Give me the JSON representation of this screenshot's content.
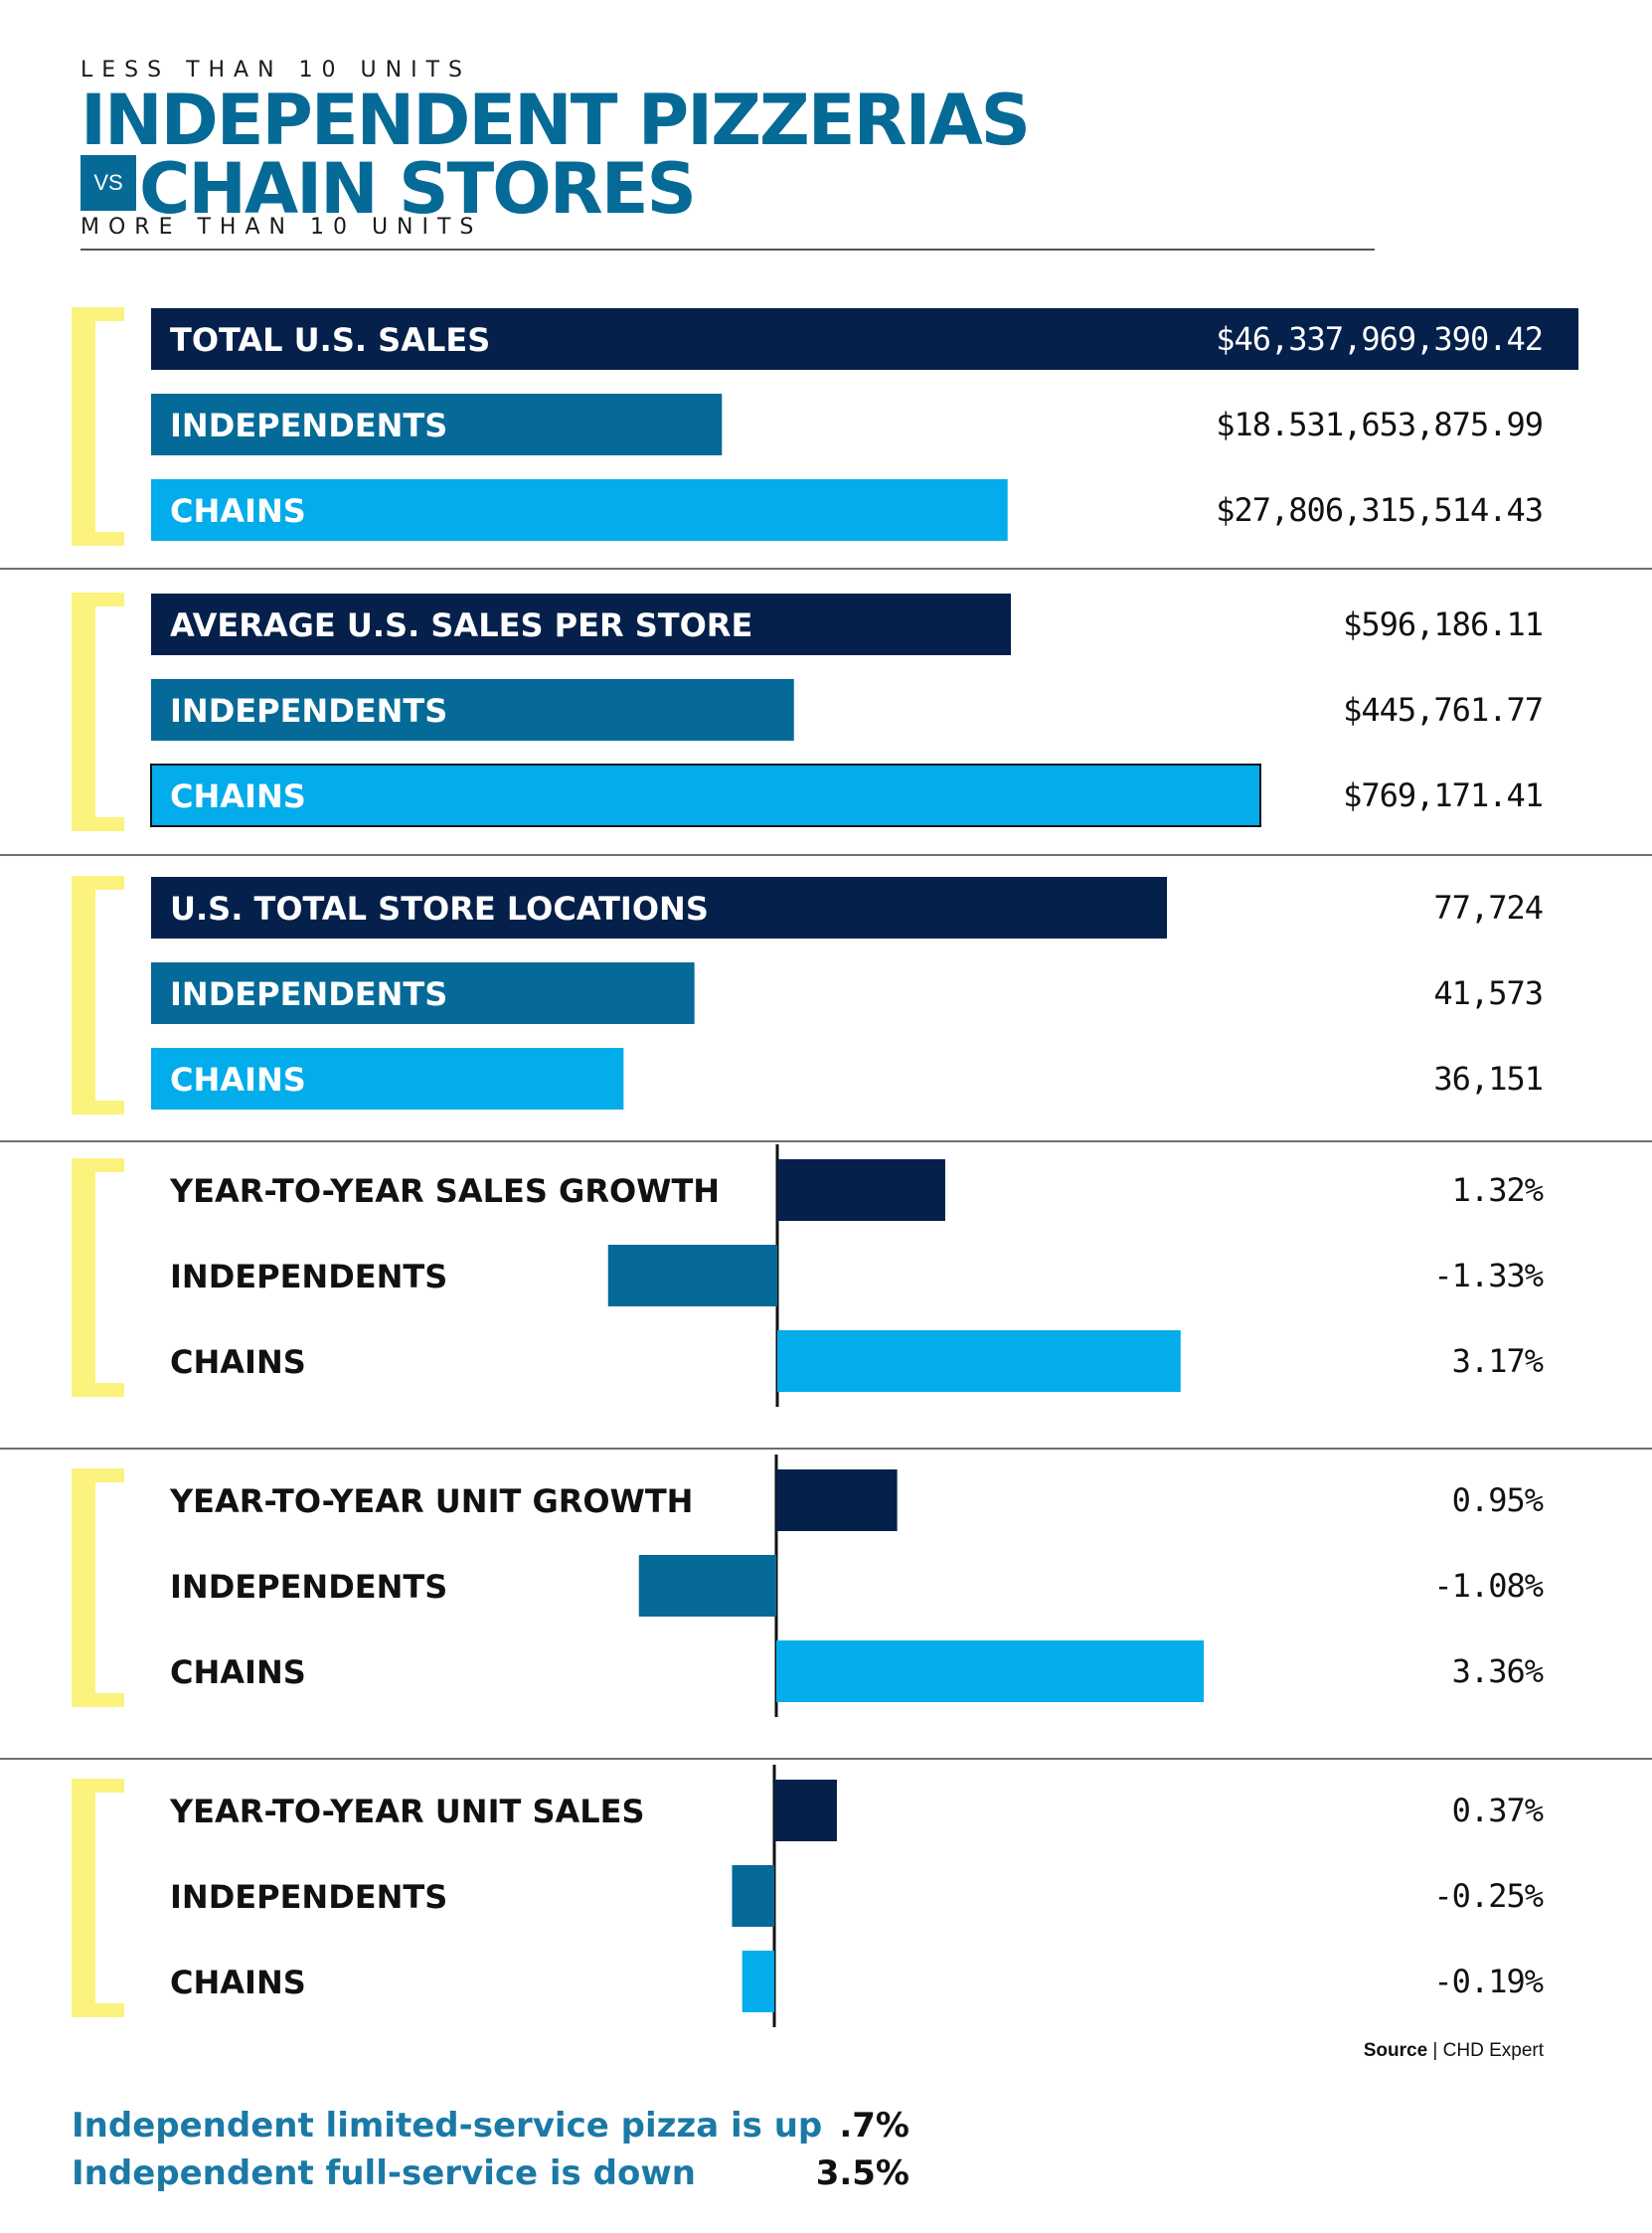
{
  "header": {
    "kicker_top": "LESS THAN 10 UNITS",
    "title_line1": "INDEPENDENT PIZZERIAS",
    "vs": "VS",
    "title_line2": "CHAIN STORES",
    "kicker_bottom": "MORE THAN 10 UNITS"
  },
  "colors": {
    "total": "#04204b",
    "independents": "#056a97",
    "chains": "#03acea",
    "bracket": "#fbf37d",
    "title": "#066a97"
  },
  "chart_data": [
    {
      "type": "bar",
      "orientation": "horizontal",
      "rows": [
        {
          "label": "TOTAL U.S. SALES",
          "value": 46337969390.42,
          "display": "$46,337,969,390.42",
          "kind": "total"
        },
        {
          "label": "INDEPENDENTS",
          "value": 18531653875.99,
          "display": "$18.531,653,875.99",
          "kind": "independents"
        },
        {
          "label": "CHAINS",
          "value": 27806315514.43,
          "display": "$27,806,315,514.43",
          "kind": "chains"
        }
      ]
    },
    {
      "type": "bar",
      "orientation": "horizontal",
      "rows": [
        {
          "label": "AVERAGE U.S. SALES PER STORE",
          "value": 596186.11,
          "display": "$596,186.11",
          "kind": "total"
        },
        {
          "label": "INDEPENDENTS",
          "value": 445761.77,
          "display": "$445,761.77",
          "kind": "independents"
        },
        {
          "label": "CHAINS",
          "value": 769171.41,
          "display": "$769,171.41",
          "kind": "chains"
        }
      ]
    },
    {
      "type": "bar",
      "orientation": "horizontal",
      "rows": [
        {
          "label": "U.S. TOTAL STORE LOCATIONS",
          "value": 77724,
          "display": "77,724",
          "kind": "total"
        },
        {
          "label": "INDEPENDENTS",
          "value": 41573,
          "display": "41,573",
          "kind": "independents"
        },
        {
          "label": "CHAINS",
          "value": 36151,
          "display": "36,151",
          "kind": "chains"
        }
      ]
    },
    {
      "type": "bar",
      "orientation": "diverging",
      "rows": [
        {
          "label": "YEAR-TO-YEAR SALES GROWTH",
          "value": 1.32,
          "display": "1.32%",
          "kind": "total"
        },
        {
          "label": "INDEPENDENTS",
          "value": -1.33,
          "display": "-1.33%",
          "kind": "independents"
        },
        {
          "label": "CHAINS",
          "value": 3.17,
          "display": "3.17%",
          "kind": "chains"
        }
      ]
    },
    {
      "type": "bar",
      "orientation": "diverging",
      "rows": [
        {
          "label": "YEAR-TO-YEAR UNIT GROWTH",
          "value": 0.95,
          "display": "0.95%",
          "kind": "total"
        },
        {
          "label": "INDEPENDENTS",
          "value": -1.08,
          "display": "-1.08%",
          "kind": "independents"
        },
        {
          "label": "CHAINS",
          "value": 3.36,
          "display": "3.36%",
          "kind": "chains"
        }
      ]
    },
    {
      "type": "bar",
      "orientation": "diverging",
      "rows": [
        {
          "label": "YEAR-TO-YEAR UNIT SALES",
          "value": 0.37,
          "display": "0.37%",
          "kind": "total"
        },
        {
          "label": "INDEPENDENTS",
          "value": -0.25,
          "display": "-0.25%",
          "kind": "independents"
        },
        {
          "label": "CHAINS",
          "value": -0.19,
          "display": "-0.19%",
          "kind": "chains"
        }
      ]
    }
  ],
  "source": {
    "label": "Source",
    "separator": "|",
    "name": "CHD Expert"
  },
  "footer": [
    {
      "text": "Independent limited-service pizza is up",
      "value": ".7%"
    },
    {
      "text": "Independent full-service is down",
      "value": "3.5%"
    }
  ]
}
